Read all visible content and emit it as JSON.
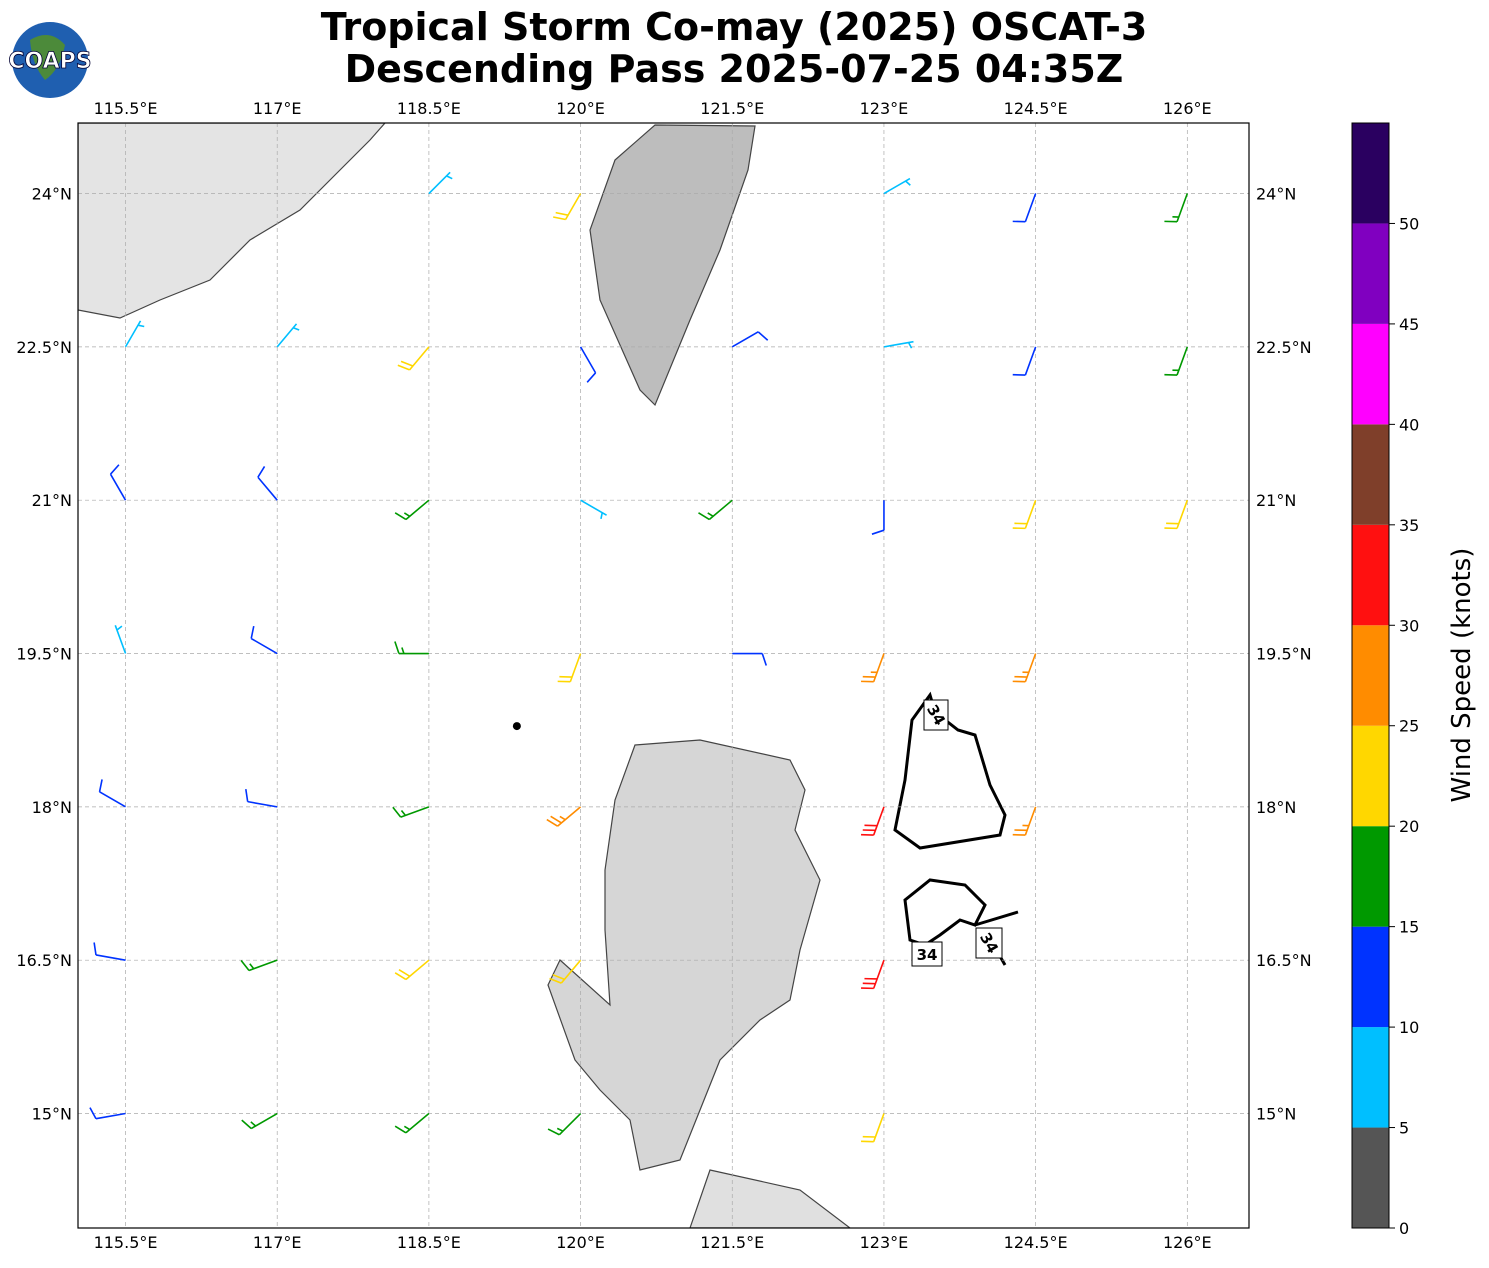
{
  "header": {
    "logo_text": "COAPS",
    "title_line1": "Tropical Storm Co-may (2025) OSCAT-3",
    "title_line2": "Descending Pass 2025-07-25 04:35Z"
  },
  "map": {
    "lon_range": [
      115.03,
      126.61
    ],
    "lat_range": [
      13.88,
      24.69
    ],
    "lon_ticks": [
      {
        "value": 115.5,
        "label": "115.5°E"
      },
      {
        "value": 117,
        "label": "117°E"
      },
      {
        "value": 118.5,
        "label": "118.5°E"
      },
      {
        "value": 120,
        "label": "120°E"
      },
      {
        "value": 121.5,
        "label": "121.5°E"
      },
      {
        "value": 123,
        "label": "123°E"
      },
      {
        "value": 124.5,
        "label": "124.5°E"
      },
      {
        "value": 126,
        "label": "126°E"
      }
    ],
    "lat_ticks": [
      {
        "value": 15,
        "label": "15°N"
      },
      {
        "value": 16.5,
        "label": "16.5°N"
      },
      {
        "value": 18,
        "label": "18°N"
      },
      {
        "value": 19.5,
        "label": "19.5°N"
      },
      {
        "value": 21,
        "label": "21°N"
      },
      {
        "value": 22.5,
        "label": "22.5°N"
      },
      {
        "value": 24,
        "label": "24°N"
      }
    ],
    "grid": true,
    "storm_center": {
      "lon": 119.37,
      "lat": 18.79
    },
    "contour_labels": [
      "34",
      "34",
      "34"
    ],
    "wind_barbs": [
      {
        "lon": 118.5,
        "lat": 24,
        "speed": 8,
        "dir": 45
      },
      {
        "lon": 120,
        "lat": 24,
        "speed": 22,
        "dir": 210
      },
      {
        "lon": 123,
        "lat": 24,
        "speed": 8,
        "dir": 60
      },
      {
        "lon": 124.5,
        "lat": 24,
        "speed": 14,
        "dir": 200
      },
      {
        "lon": 126,
        "lat": 24,
        "speed": 17,
        "dir": 200
      },
      {
        "lon": 115.5,
        "lat": 22.5,
        "speed": 8,
        "dir": 30
      },
      {
        "lon": 117,
        "lat": 22.5,
        "speed": 9,
        "dir": 40
      },
      {
        "lon": 118.5,
        "lat": 22.5,
        "speed": 21,
        "dir": 220
      },
      {
        "lon": 120,
        "lat": 22.5,
        "speed": 12,
        "dir": 150
      },
      {
        "lon": 121.5,
        "lat": 22.5,
        "speed": 12,
        "dir": 60
      },
      {
        "lon": 123,
        "lat": 22.5,
        "speed": 9,
        "dir": 80
      },
      {
        "lon": 124.5,
        "lat": 22.5,
        "speed": 13,
        "dir": 200
      },
      {
        "lon": 126,
        "lat": 22.5,
        "speed": 18,
        "dir": 200
      },
      {
        "lon": 115.5,
        "lat": 21,
        "speed": 12,
        "dir": 330
      },
      {
        "lon": 117,
        "lat": 21,
        "speed": 13,
        "dir": 320
      },
      {
        "lon": 118.5,
        "lat": 21,
        "speed": 17,
        "dir": 230
      },
      {
        "lon": 120,
        "lat": 21,
        "speed": 8,
        "dir": 120
      },
      {
        "lon": 121.5,
        "lat": 21,
        "speed": 16,
        "dir": 230
      },
      {
        "lon": 123,
        "lat": 21,
        "speed": 13,
        "dir": 180
      },
      {
        "lon": 124.5,
        "lat": 21,
        "speed": 22,
        "dir": 200
      },
      {
        "lon": 126,
        "lat": 21,
        "speed": 22,
        "dir": 200
      },
      {
        "lon": 115.5,
        "lat": 19.5,
        "speed": 9,
        "dir": 340
      },
      {
        "lon": 117,
        "lat": 19.5,
        "speed": 13,
        "dir": 300
      },
      {
        "lon": 118.5,
        "lat": 19.5,
        "speed": 17,
        "dir": 270
      },
      {
        "lon": 120,
        "lat": 19.5,
        "speed": 23,
        "dir": 200
      },
      {
        "lon": 121.5,
        "lat": 19.5,
        "speed": 12,
        "dir": 90
      },
      {
        "lon": 123,
        "lat": 19.5,
        "speed": 26,
        "dir": 200
      },
      {
        "lon": 124.5,
        "lat": 19.5,
        "speed": 27,
        "dir": 200
      },
      {
        "lon": 115.5,
        "lat": 18,
        "speed": 12,
        "dir": 300
      },
      {
        "lon": 117,
        "lat": 18,
        "speed": 14,
        "dir": 280
      },
      {
        "lon": 118.5,
        "lat": 18,
        "speed": 18,
        "dir": 250
      },
      {
        "lon": 120,
        "lat": 18,
        "speed": 26,
        "dir": 230
      },
      {
        "lon": 123,
        "lat": 18,
        "speed": 32,
        "dir": 200
      },
      {
        "lon": 124.5,
        "lat": 18,
        "speed": 28,
        "dir": 200
      },
      {
        "lon": 115.5,
        "lat": 16.5,
        "speed": 12,
        "dir": 280
      },
      {
        "lon": 117,
        "lat": 16.5,
        "speed": 16,
        "dir": 250
      },
      {
        "lon": 118.5,
        "lat": 16.5,
        "speed": 22,
        "dir": 230
      },
      {
        "lon": 120,
        "lat": 16.5,
        "speed": 21,
        "dir": 220
      },
      {
        "lon": 123,
        "lat": 16.5,
        "speed": 32,
        "dir": 200
      },
      {
        "lon": 115.5,
        "lat": 15,
        "speed": 13,
        "dir": 260
      },
      {
        "lon": 117,
        "lat": 15,
        "speed": 17,
        "dir": 240
      },
      {
        "lon": 118.5,
        "lat": 15,
        "speed": 19,
        "dir": 230
      },
      {
        "lon": 120,
        "lat": 15,
        "speed": 18,
        "dir": 225
      },
      {
        "lon": 123,
        "lat": 15,
        "speed": 24,
        "dir": 200
      }
    ]
  },
  "colorbar": {
    "label": "Wind Speed (knots)",
    "bounds": [
      0,
      5,
      10,
      15,
      20,
      25,
      30,
      35,
      40,
      45,
      50,
      55
    ],
    "colors": [
      "#555555",
      "#00bfff",
      "#0033ff",
      "#009900",
      "#ffd700",
      "#ff8c00",
      "#ff1010",
      "#7f3f2a",
      "#ff00ff",
      "#8000c0",
      "#2a0060"
    ],
    "ticks": [
      0,
      5,
      10,
      15,
      20,
      25,
      30,
      35,
      40,
      45,
      50
    ]
  }
}
